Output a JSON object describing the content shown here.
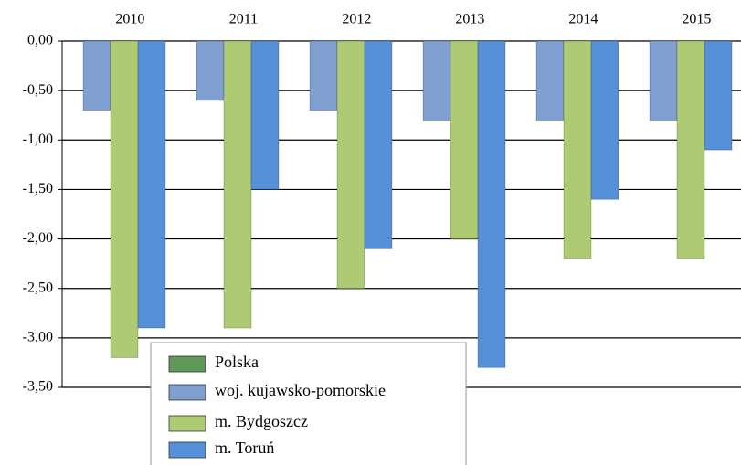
{
  "chart_data": {
    "type": "bar",
    "categories": [
      "2010",
      "2011",
      "2012",
      "2013",
      "2014",
      "2015"
    ],
    "series": [
      {
        "name": "Polska",
        "color": "#5e9a55",
        "values": [
          0,
          0,
          0,
          0,
          0,
          0
        ]
      },
      {
        "name": "woj. kujawsko-pomorskie",
        "color": "#7f9fd1",
        "values": [
          -0.7,
          -0.6,
          -0.7,
          -0.8,
          -0.8,
          -0.8
        ]
      },
      {
        "name": "m. Bydgoszcz",
        "color": "#aecb74",
        "values": [
          -3.2,
          -2.9,
          -2.5,
          -2.0,
          -2.2,
          -2.2
        ]
      },
      {
        "name": "m. Toruń",
        "color": "#5590d8",
        "values": [
          -2.9,
          -1.5,
          -2.1,
          -3.3,
          -1.6,
          -1.1
        ]
      }
    ],
    "ylim": [
      -3.5,
      0
    ],
    "yticks": [
      {
        "value": 0,
        "label": "0,00"
      },
      {
        "value": -0.5,
        "label": "-0,50"
      },
      {
        "value": -1,
        "label": "-1,00"
      },
      {
        "value": -1.5,
        "label": "-1,50"
      },
      {
        "value": -2,
        "label": "-2,00"
      },
      {
        "value": -2.5,
        "label": "-2,50"
      },
      {
        "value": -3,
        "label": "-3,00"
      },
      {
        "value": -3.5,
        "label": "-3,50"
      }
    ],
    "grid": true,
    "legend": "bottom"
  }
}
